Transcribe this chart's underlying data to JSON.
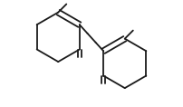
{
  "bg_color": "#ffffff",
  "line_color": "#1a1a1a",
  "line_width": 1.3,
  "figsize": [
    2.02,
    1.18
  ],
  "dpi": 100,
  "xlim": [
    -0.1,
    1.95
  ],
  "ylim": [
    -0.15,
    1.15
  ]
}
